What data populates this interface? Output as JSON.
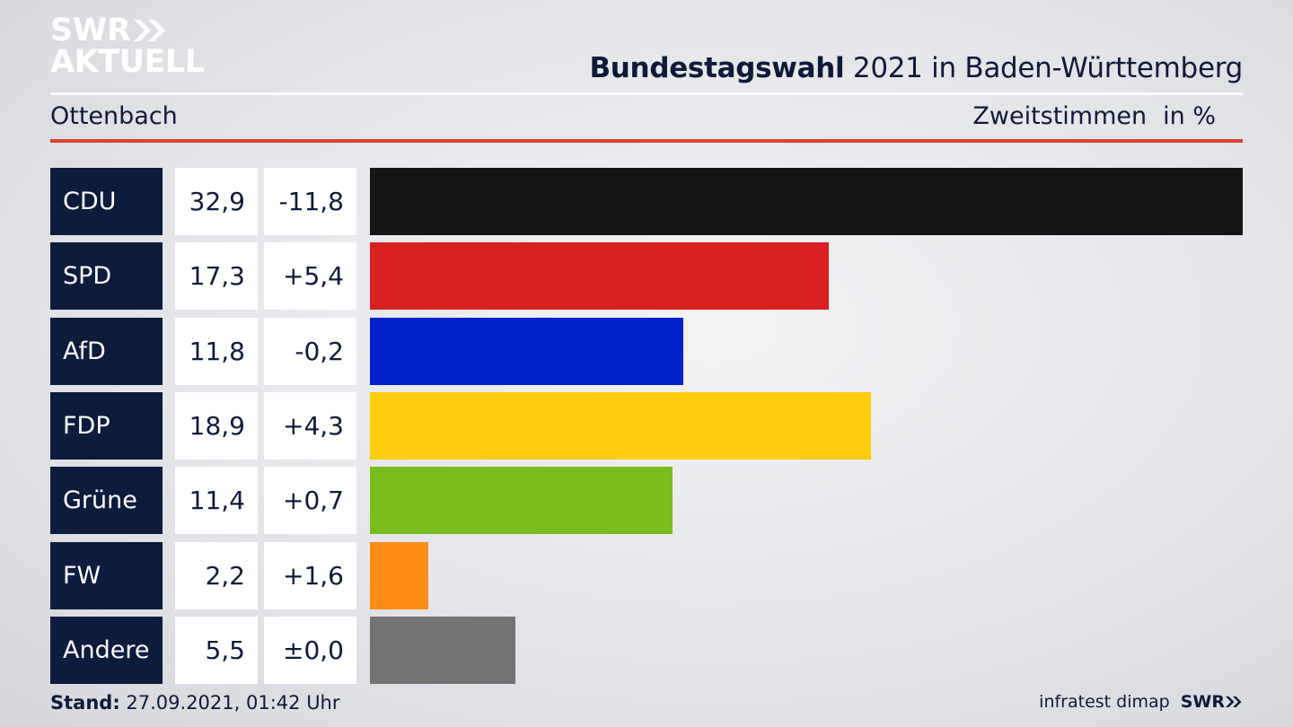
{
  "logo": {
    "line1": "SWR",
    "line2": "AKTUELL"
  },
  "header": {
    "title_bold": "Bundestagswahl",
    "title_rest": "2021 in Baden-Württemberg",
    "place": "Ottenbach",
    "measure": "Zweitstimmen",
    "unit": "in %"
  },
  "colors": {
    "red_rule": "#d64534",
    "party_box": "#0d1b3d"
  },
  "chart_data": {
    "type": "bar",
    "orientation": "horizontal",
    "title": "Bundestagswahl 2021 in Baden-Württemberg",
    "subtitle": "Ottenbach",
    "ylabel": "Zweitstimmen in %",
    "categories": [
      "CDU",
      "SPD",
      "AfD",
      "FDP",
      "Grüne",
      "FW",
      "Andere"
    ],
    "values": [
      32.9,
      17.3,
      11.8,
      18.9,
      11.4,
      2.2,
      5.5
    ],
    "value_labels": [
      "32,9",
      "17,3",
      "11,8",
      "18,9",
      "11,4",
      "2,2",
      "5,5"
    ],
    "change_labels": [
      "-11,8",
      "+5,4",
      "-0,2",
      "+4,3",
      "+0,7",
      "+1,6",
      "±0,0"
    ],
    "bar_colors": [
      "#141414",
      "#d92121",
      "#0022cc",
      "#fdcc0a",
      "#77bd1d",
      "#fd8c16",
      "#737373"
    ],
    "xlim": [
      0,
      32.9
    ],
    "grid": false,
    "legend": "none"
  },
  "footer": {
    "stand_label": "Stand:",
    "stand_value": "27.09.2021, 01:42 Uhr",
    "source": "infratest dimap",
    "brand": "SWR"
  }
}
